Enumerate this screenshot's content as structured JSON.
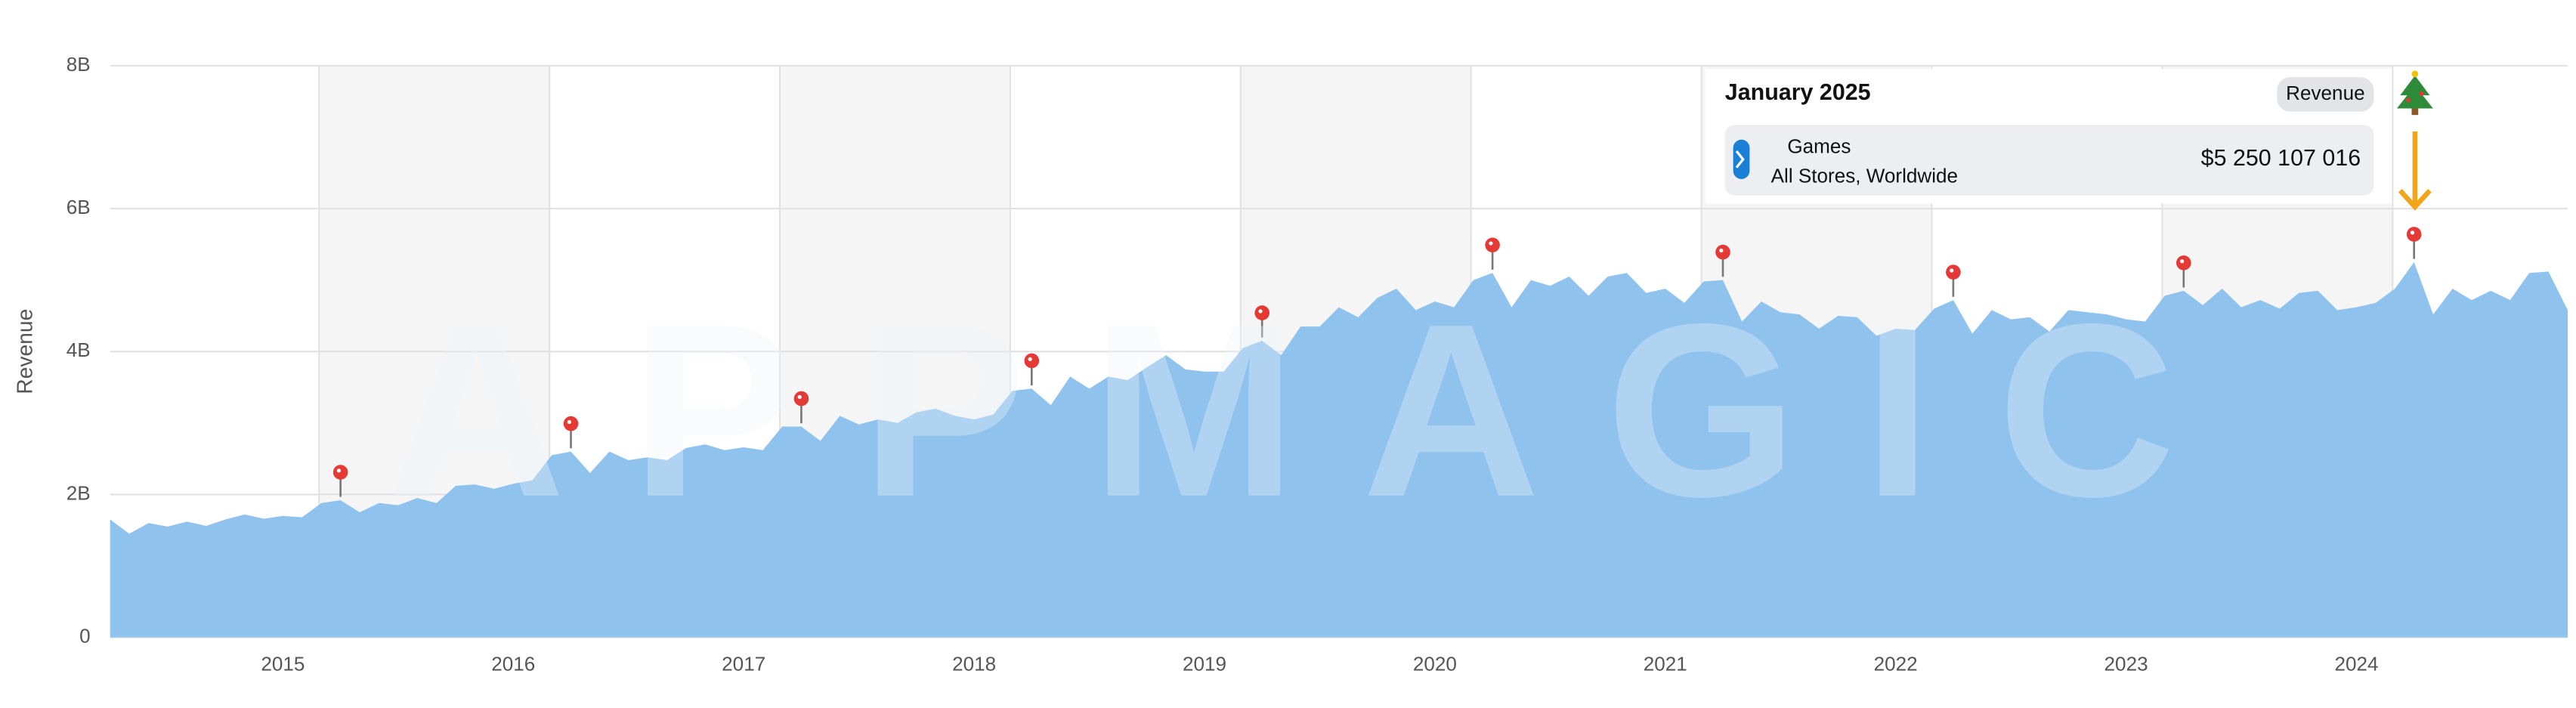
{
  "chart_data": {
    "type": "area",
    "watermark": "APPMAGIC",
    "ylabel": "Revenue",
    "color": "#90c2ee",
    "grid": true,
    "x": [
      2014.25,
      2014.333,
      2014.417,
      2014.5,
      2014.583,
      2014.667,
      2014.75,
      2014.833,
      2014.917,
      2015,
      2015.083,
      2015.167,
      2015.25,
      2015.333,
      2015.417,
      2015.5,
      2015.583,
      2015.667,
      2015.75,
      2015.833,
      2015.917,
      2016,
      2016.083,
      2016.167,
      2016.25,
      2016.333,
      2016.417,
      2016.5,
      2016.583,
      2016.667,
      2016.75,
      2016.833,
      2016.917,
      2017,
      2017.083,
      2017.167,
      2017.25,
      2017.333,
      2017.417,
      2017.5,
      2017.583,
      2017.667,
      2017.75,
      2017.833,
      2017.917,
      2018,
      2018.083,
      2018.167,
      2018.25,
      2018.333,
      2018.417,
      2018.5,
      2018.583,
      2018.667,
      2018.75,
      2018.833,
      2018.917,
      2019,
      2019.083,
      2019.167,
      2019.25,
      2019.333,
      2019.417,
      2019.5,
      2019.583,
      2019.667,
      2019.75,
      2019.833,
      2019.917,
      2020,
      2020.083,
      2020.167,
      2020.25,
      2020.333,
      2020.417,
      2020.5,
      2020.583,
      2020.667,
      2020.75,
      2020.833,
      2020.917,
      2021,
      2021.083,
      2021.167,
      2021.25,
      2021.333,
      2021.417,
      2021.5,
      2021.583,
      2021.667,
      2021.75,
      2021.833,
      2021.917,
      2022,
      2022.083,
      2022.167,
      2022.25,
      2022.333,
      2022.417,
      2022.5,
      2022.583,
      2022.667,
      2022.75,
      2022.833,
      2022.917,
      2023,
      2023.083,
      2023.167,
      2023.25,
      2023.333,
      2023.417,
      2023.5,
      2023.583,
      2023.667,
      2023.75,
      2023.833,
      2023.917,
      2024,
      2024.083,
      2024.167,
      2024.25,
      2024.333,
      2024.417,
      2024.5,
      2024.583,
      2024.667,
      2024.75,
      2024.833,
      2024.917
    ],
    "values": [
      1.65,
      1.45,
      1.6,
      1.55,
      1.62,
      1.56,
      1.65,
      1.72,
      1.66,
      1.7,
      1.68,
      1.88,
      1.92,
      1.75,
      1.88,
      1.85,
      1.95,
      1.88,
      2.12,
      2.14,
      2.08,
      2.15,
      2.2,
      2.55,
      2.6,
      2.3,
      2.6,
      2.48,
      2.52,
      2.48,
      2.65,
      2.7,
      2.62,
      2.66,
      2.62,
      2.95,
      2.95,
      2.75,
      3.1,
      2.98,
      3.05,
      3.0,
      3.15,
      3.2,
      3.1,
      3.05,
      3.12,
      3.45,
      3.48,
      3.25,
      3.65,
      3.48,
      3.65,
      3.6,
      3.78,
      3.95,
      3.75,
      3.72,
      3.72,
      4.05,
      4.15,
      3.95,
      4.35,
      4.35,
      4.62,
      4.48,
      4.75,
      4.88,
      4.58,
      4.7,
      4.62,
      5.0,
      5.1,
      4.62,
      5.0,
      4.92,
      5.05,
      4.78,
      5.05,
      5.1,
      4.82,
      4.88,
      4.68,
      4.98,
      5.0,
      4.42,
      4.7,
      4.55,
      4.52,
      4.32,
      4.5,
      4.48,
      4.22,
      4.32,
      4.3,
      4.6,
      4.72,
      4.25,
      4.58,
      4.45,
      4.48,
      4.28,
      4.58,
      4.55,
      4.52,
      4.45,
      4.42,
      4.78,
      4.85,
      4.65,
      4.88,
      4.62,
      4.72,
      4.6,
      4.82,
      4.85,
      4.58,
      4.62,
      4.68,
      4.88,
      5.25,
      4.52,
      4.88,
      4.72,
      4.85,
      4.72,
      5.1,
      5.12,
      4.58
    ],
    "xlim": [
      2014.25,
      2024.917
    ],
    "xticks": [
      2015,
      2016,
      2017,
      2018,
      2019,
      2020,
      2021,
      2022,
      2023,
      2024
    ],
    "ylim": [
      0,
      8
    ],
    "yticks": [
      {
        "value": 0,
        "label": "0"
      },
      {
        "value": 2,
        "label": "2B"
      },
      {
        "value": 4,
        "label": "4B"
      },
      {
        "value": 6,
        "label": "6B"
      },
      {
        "value": 8,
        "label": "8B"
      }
    ]
  },
  "tooltip": {
    "title": "January 2025",
    "metric": "Revenue",
    "app": "Games",
    "scope": "All Stores, Worldwide",
    "value": "$5 250 107 016"
  }
}
